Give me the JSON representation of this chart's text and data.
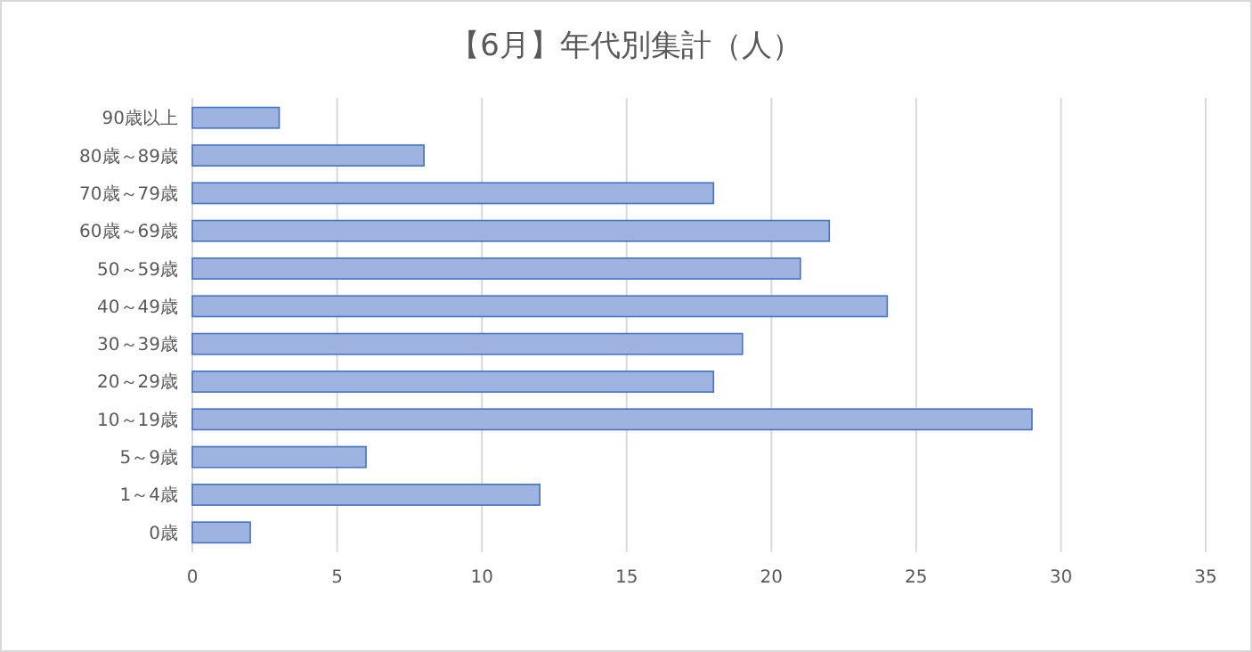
{
  "chart_data": {
    "type": "bar",
    "orientation": "horizontal",
    "title": "【6月】年代別集計（人）",
    "categories": [
      "90歳以上",
      "80歳～89歳",
      "70歳～79歳",
      "60歳～69歳",
      "50～59歳",
      "40～49歳",
      "30～39歳",
      "20～29歳",
      "10～19歳",
      "5～9歳",
      "1～4歳",
      "0歳"
    ],
    "values": [
      3,
      8,
      18,
      22,
      21,
      24,
      19,
      18,
      29,
      6,
      12,
      2
    ],
    "color": "#9fb3e0",
    "xlim": [
      0,
      35
    ],
    "xticks": [
      0,
      5,
      10,
      15,
      20,
      25,
      30,
      35
    ],
    "grid": "x"
  }
}
